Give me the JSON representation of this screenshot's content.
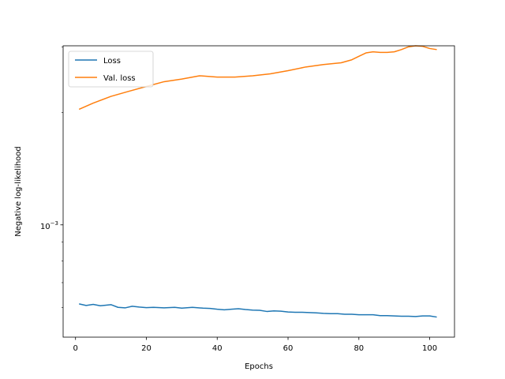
{
  "chart_data": {
    "type": "line",
    "title": "",
    "xlabel": "Epochs",
    "ylabel": "Negative log-likelihood",
    "xlim": [
      -3.5,
      107
    ],
    "ylim": [
      0.0005,
      0.00302
    ],
    "yscale": "log",
    "xticks": [
      0,
      20,
      40,
      60,
      80,
      100
    ],
    "xtick_labels": [
      "0",
      "20",
      "40",
      "60",
      "80",
      "100"
    ],
    "yticks": [
      0.001
    ],
    "ytick_labels": [
      "10",
      "−3"
    ],
    "grid": false,
    "legend": {
      "placement": "top-left"
    },
    "series": [
      {
        "name": "Loss",
        "color": "#1f77b4",
        "x": [
          1,
          3,
          5,
          7,
          10,
          12,
          14,
          16,
          18,
          20,
          22,
          25,
          28,
          30,
          33,
          36,
          38,
          40,
          42,
          44,
          46,
          48,
          50,
          52,
          54,
          56,
          58,
          60,
          62,
          64,
          66,
          68,
          70,
          72,
          74,
          76,
          78,
          80,
          82,
          84,
          86,
          88,
          90,
          92,
          94,
          96,
          98,
          100,
          102
        ],
        "y": [
          0.000614,
          0.000608,
          0.000612,
          0.000607,
          0.000611,
          0.000601,
          0.000599,
          0.000605,
          0.000602,
          0.0006,
          0.000601,
          0.000599,
          0.000601,
          0.000598,
          0.000601,
          0.000598,
          0.000597,
          0.000594,
          0.000592,
          0.000594,
          0.000596,
          0.000593,
          0.000591,
          0.00059,
          0.000586,
          0.000588,
          0.000587,
          0.000584,
          0.000583,
          0.000583,
          0.000582,
          0.000581,
          0.000579,
          0.000578,
          0.000578,
          0.000576,
          0.000576,
          0.000574,
          0.000574,
          0.000574,
          0.000571,
          0.000571,
          0.00057,
          0.000569,
          0.000569,
          0.000568,
          0.00057,
          0.00057,
          0.000566
        ]
      },
      {
        "name": "Val. loss",
        "color": "#ff7f0e",
        "x": [
          1,
          5,
          10,
          15,
          20,
          25,
          30,
          35,
          40,
          45,
          50,
          55,
          60,
          65,
          70,
          75,
          78,
          80,
          82,
          84,
          86,
          88,
          90,
          92,
          94,
          96,
          98,
          100,
          102
        ],
        "y": [
          0.00204,
          0.00212,
          0.00221,
          0.00228,
          0.00235,
          0.00242,
          0.00246,
          0.00251,
          0.00249,
          0.00249,
          0.00251,
          0.00254,
          0.00259,
          0.00265,
          0.00269,
          0.00272,
          0.00277,
          0.00283,
          0.00289,
          0.00291,
          0.0029,
          0.0029,
          0.00291,
          0.00295,
          0.003,
          0.00302,
          0.00301,
          0.00297,
          0.00295
        ]
      }
    ]
  }
}
